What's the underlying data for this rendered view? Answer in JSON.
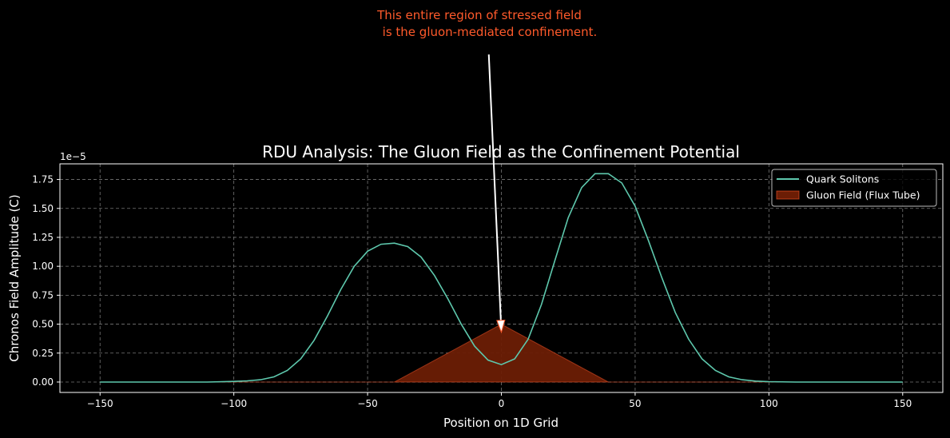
{
  "chart_data": {
    "type": "line",
    "title": "RDU Analysis: The Gluon Field as the Confinement Potential",
    "xlabel": "Position on 1D Grid",
    "ylabel": "Chronos Field Amplitude (C)",
    "y_scale_label": "1e−5",
    "xlim": [
      -165,
      165
    ],
    "ylim": [
      -0.09,
      1.885
    ],
    "x_ticks": [
      -150,
      -100,
      -50,
      0,
      50,
      100,
      150
    ],
    "x_tick_labels": [
      "−150",
      "−100",
      "−50",
      "0",
      "50",
      "100",
      "150"
    ],
    "y_ticks": [
      0,
      0.25,
      0.5,
      0.75,
      1.0,
      1.25,
      1.5,
      1.75
    ],
    "y_tick_labels": [
      "0.00",
      "0.25",
      "0.50",
      "0.75",
      "1.00",
      "1.25",
      "1.50",
      "1.75"
    ],
    "grid": true,
    "legend_placement": "upper-right",
    "series": [
      {
        "name": "Quark Solitons",
        "kind": "line",
        "color": "#5ec8ad",
        "x": [
          -150,
          -140,
          -130,
          -120,
          -110,
          -100,
          -95,
          -90,
          -85,
          -80,
          -75,
          -70,
          -65,
          -60,
          -55,
          -50,
          -45,
          -40,
          -35,
          -30,
          -25,
          -20,
          -15,
          -10,
          -5,
          0,
          5,
          10,
          15,
          20,
          25,
          30,
          35,
          40,
          45,
          50,
          55,
          60,
          65,
          70,
          75,
          80,
          85,
          90,
          95,
          100,
          110,
          120,
          130,
          140,
          150
        ],
        "y": [
          0,
          0,
          0,
          0,
          0,
          0.005,
          0.01,
          0.02,
          0.045,
          0.1,
          0.2,
          0.36,
          0.57,
          0.8,
          1.0,
          1.13,
          1.19,
          1.2,
          1.17,
          1.08,
          0.92,
          0.72,
          0.5,
          0.31,
          0.19,
          0.15,
          0.2,
          0.37,
          0.67,
          1.05,
          1.42,
          1.68,
          1.8,
          1.8,
          1.72,
          1.52,
          1.22,
          0.9,
          0.6,
          0.37,
          0.2,
          0.1,
          0.045,
          0.02,
          0.008,
          0.003,
          0,
          0,
          0,
          0,
          0
        ]
      },
      {
        "name": "Gluon Field (Flux Tube)",
        "kind": "area",
        "color": "#6b1d05",
        "x": [
          -150,
          -40,
          0,
          40,
          150
        ],
        "y": [
          0,
          0,
          0.5,
          0,
          0
        ]
      }
    ],
    "annotation": {
      "text_line1": "This entire region of stressed field",
      "text_line2": "is the gluon-mediated confinement.",
      "color": "#ff5a2b",
      "arrow_to": [
        0,
        0.43
      ],
      "arrow_from": [
        -4.7,
        2.83
      ]
    }
  },
  "colors": {
    "background": "#000000",
    "axes": "#ffffff",
    "grid": "#777777",
    "text": "#ffffff"
  }
}
